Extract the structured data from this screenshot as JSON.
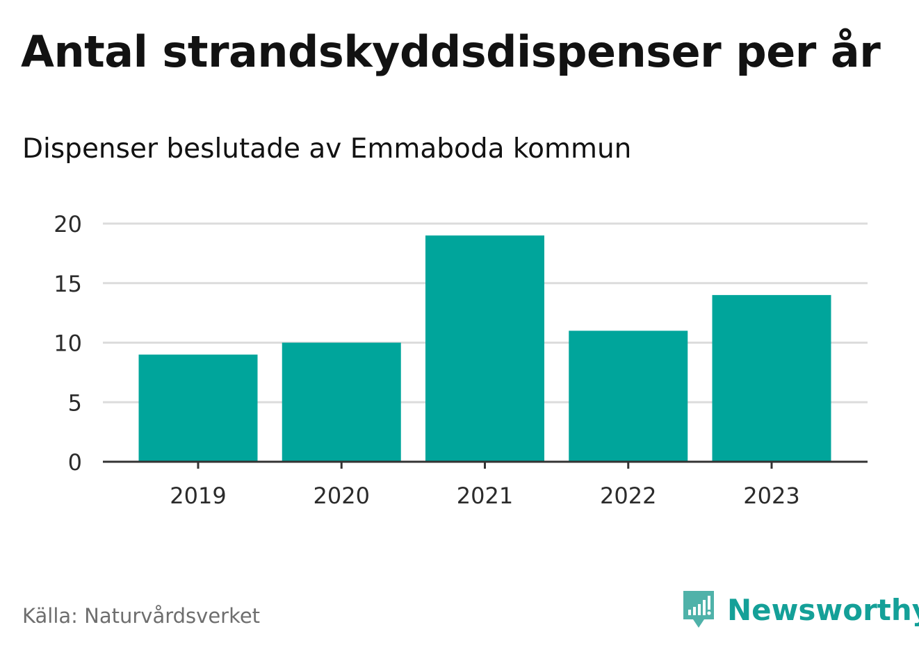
{
  "title": "Antal strandskyddsdispenser per år",
  "subtitle": "Dispenser beslutade av Emmaboda kommun",
  "source": "Källa: Naturvårdsverket",
  "brand": {
    "name": "Newsworthy",
    "icon": "newsworthy-logo-icon"
  },
  "colors": {
    "bar": "#00a59b",
    "grid": "#dcdcdc",
    "axis": "#333333",
    "tick_text": "#2b2b2b",
    "brand": "#14a098"
  },
  "chart_data": {
    "type": "bar",
    "title": "Antal strandskyddsdispenser per år",
    "subtitle": "Dispenser beslutade av Emmaboda kommun",
    "xlabel": "",
    "ylabel": "",
    "categories": [
      "2019",
      "2020",
      "2021",
      "2022",
      "2023"
    ],
    "values": [
      9,
      10,
      19,
      11,
      14
    ],
    "ylim": [
      0,
      20
    ],
    "yticks": [
      "0",
      "5",
      "10",
      "15",
      "20"
    ],
    "grid": true,
    "legend": "none"
  }
}
